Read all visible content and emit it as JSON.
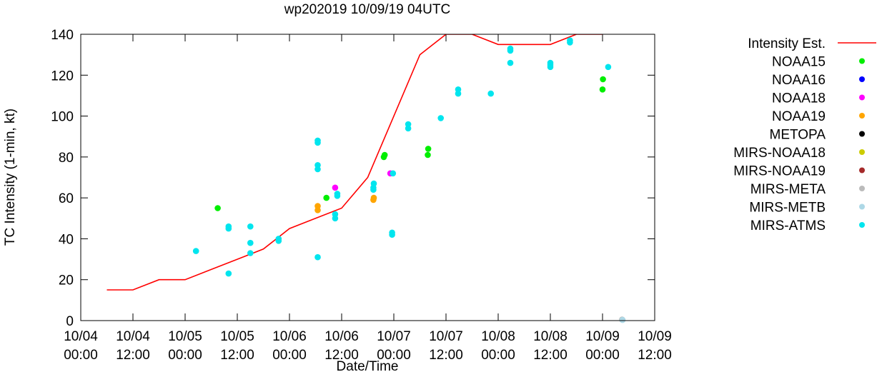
{
  "chart_data": {
    "type": "scatter",
    "title": "wp202019 10/09/19 04UTC",
    "xlabel": "Date/Time",
    "ylabel": "TC Intensity (1-min, kt)",
    "xlim": [
      0,
      132
    ],
    "ylim": [
      0,
      140
    ],
    "x_unit": "hours since 10/04 00:00",
    "x_ticks": [
      {
        "value": 0,
        "line1": "10/04",
        "line2": "00:00"
      },
      {
        "value": 12,
        "line1": "10/04",
        "line2": "12:00"
      },
      {
        "value": 24,
        "line1": "10/05",
        "line2": "00:00"
      },
      {
        "value": 36,
        "line1": "10/05",
        "line2": "12:00"
      },
      {
        "value": 48,
        "line1": "10/06",
        "line2": "00:00"
      },
      {
        "value": 60,
        "line1": "10/06",
        "line2": "12:00"
      },
      {
        "value": 72,
        "line1": "10/07",
        "line2": "00:00"
      },
      {
        "value": 84,
        "line1": "10/07",
        "line2": "12:00"
      },
      {
        "value": 96,
        "line1": "10/08",
        "line2": "00:00"
      },
      {
        "value": 108,
        "line1": "10/08",
        "line2": "12:00"
      },
      {
        "value": 120,
        "line1": "10/09",
        "line2": "00:00"
      },
      {
        "value": 132,
        "line1": "10/09",
        "line2": "12:00"
      }
    ],
    "y_ticks": [
      0,
      20,
      40,
      60,
      80,
      100,
      120,
      140
    ],
    "line_series": {
      "name": "Intensity Est.",
      "color": "#ff0000",
      "points": [
        [
          6,
          15
        ],
        [
          12,
          15
        ],
        [
          18,
          20
        ],
        [
          24,
          20
        ],
        [
          30,
          25
        ],
        [
          36,
          30
        ],
        [
          42,
          35
        ],
        [
          48,
          45
        ],
        [
          54,
          50
        ],
        [
          60,
          55
        ],
        [
          66,
          70
        ],
        [
          72,
          100
        ],
        [
          78,
          130
        ],
        [
          84,
          140
        ],
        [
          90,
          140
        ],
        [
          96,
          135
        ],
        [
          102,
          135
        ],
        [
          108,
          135
        ],
        [
          114,
          140
        ],
        [
          120,
          140
        ]
      ]
    },
    "scatter_series": [
      {
        "name": "NOAA15",
        "color": "#00ee00",
        "points": [
          [
            31.5,
            55
          ],
          [
            56.5,
            60
          ],
          [
            69.7,
            80
          ],
          [
            69.9,
            81
          ],
          [
            79.8,
            81
          ],
          [
            79.9,
            84
          ],
          [
            120,
            113
          ],
          [
            120.1,
            118
          ]
        ]
      },
      {
        "name": "NOAA16",
        "color": "#0000ff",
        "points": []
      },
      {
        "name": "NOAA18",
        "color": "#ff00ff",
        "points": [
          [
            58.5,
            65
          ],
          [
            71.2,
            72
          ]
        ]
      },
      {
        "name": "NOAA19",
        "color": "#ffa500",
        "points": [
          [
            54.5,
            54
          ],
          [
            54.5,
            56
          ],
          [
            67.3,
            59
          ],
          [
            67.4,
            60
          ]
        ]
      },
      {
        "name": "METOPA",
        "color": "#000000",
        "points": []
      },
      {
        "name": "MIRS-NOAA18",
        "color": "#cccc00",
        "points": []
      },
      {
        "name": "MIRS-NOAA19",
        "color": "#a52a2a",
        "points": []
      },
      {
        "name": "MIRS-META",
        "color": "#bbbbbb",
        "points": [
          [
            124.5,
            0.5
          ]
        ]
      },
      {
        "name": "MIRS-METB",
        "color": "#add8e6",
        "points": [
          [
            124.6,
            0.3
          ]
        ]
      },
      {
        "name": "MIRS-ATMS",
        "color": "#00e5ee",
        "points": [
          [
            26.5,
            34
          ],
          [
            34,
            23
          ],
          [
            34,
            45
          ],
          [
            34,
            46
          ],
          [
            39,
            33
          ],
          [
            39,
            38
          ],
          [
            39,
            46
          ],
          [
            45.5,
            39
          ],
          [
            45.5,
            40
          ],
          [
            54.5,
            31
          ],
          [
            54.5,
            74
          ],
          [
            54.5,
            76
          ],
          [
            54.5,
            87
          ],
          [
            54.5,
            88
          ],
          [
            58.5,
            50
          ],
          [
            58.5,
            52
          ],
          [
            59,
            61
          ],
          [
            59,
            62
          ],
          [
            67.3,
            64
          ],
          [
            67.3,
            65
          ],
          [
            67.4,
            67
          ],
          [
            71.6,
            42
          ],
          [
            71.6,
            43
          ],
          [
            71.8,
            72
          ],
          [
            75.3,
            94
          ],
          [
            75.3,
            96
          ],
          [
            82.8,
            99
          ],
          [
            86.8,
            111
          ],
          [
            86.8,
            113
          ],
          [
            94.3,
            111
          ],
          [
            98.8,
            126
          ],
          [
            98.8,
            132
          ],
          [
            98.8,
            133
          ],
          [
            108,
            124
          ],
          [
            108,
            125
          ],
          [
            108,
            126
          ],
          [
            112.5,
            136
          ],
          [
            112.5,
            137
          ],
          [
            121.3,
            124
          ]
        ]
      }
    ],
    "legend_position": "right"
  }
}
